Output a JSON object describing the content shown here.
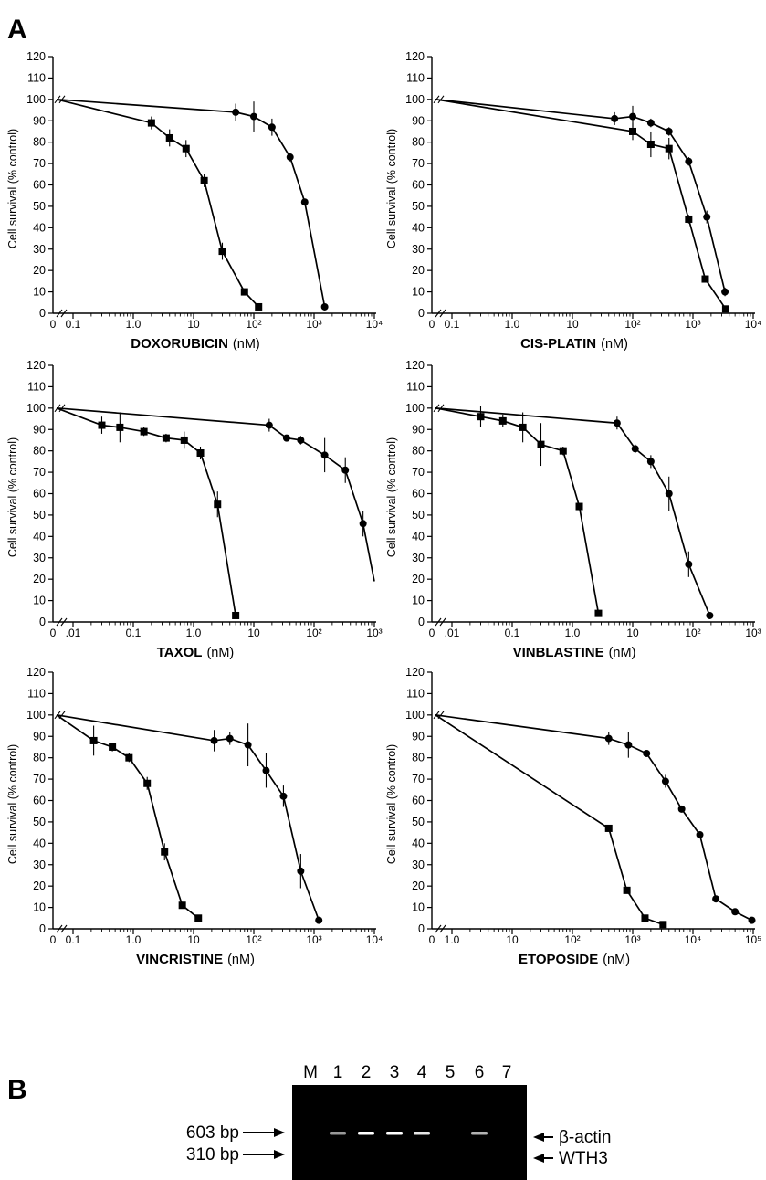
{
  "panel_a_label": "A",
  "panel_b_label": "B",
  "y_axis_label": "Cell survival (% control)",
  "chart_data": [
    {
      "type": "line",
      "drug": "DOXORUBICIN",
      "unit": "(nM)",
      "xscale": "log",
      "x_tick_labels": [
        "0",
        "0.1",
        "1.0",
        "10",
        "10²",
        "10³",
        "10⁴"
      ],
      "xlim": [
        0.1,
        10000
      ],
      "ylim": [
        0,
        120
      ],
      "y_ticks": [
        0,
        10,
        20,
        30,
        40,
        50,
        60,
        70,
        80,
        90,
        100,
        110,
        120
      ],
      "series": [
        {
          "marker": "square",
          "points": [
            [
              0.1,
              100
            ],
            [
              2,
              89
            ],
            [
              4,
              82
            ],
            [
              7.5,
              77
            ],
            [
              15,
              62
            ],
            [
              30,
              29
            ],
            [
              70,
              10
            ],
            [
              120,
              3
            ]
          ],
          "err": [
            0,
            3,
            4,
            4,
            3,
            4,
            1,
            1
          ]
        },
        {
          "marker": "circle",
          "points": [
            [
              0.1,
              100
            ],
            [
              50,
              94
            ],
            [
              100,
              92
            ],
            [
              200,
              87
            ],
            [
              400,
              73
            ],
            [
              700,
              52
            ],
            [
              1500,
              3
            ]
          ],
          "err": [
            0,
            4,
            7,
            4,
            2,
            1,
            1
          ]
        }
      ]
    },
    {
      "type": "line",
      "drug": "CIS-PLATIN",
      "unit": "(nM)",
      "xscale": "log",
      "x_tick_labels": [
        "0",
        "0.1",
        "1.0",
        "10",
        "10²",
        "10³",
        "10⁴"
      ],
      "xlim": [
        0.1,
        10000
      ],
      "ylim": [
        0,
        120
      ],
      "y_ticks": [
        0,
        10,
        20,
        30,
        40,
        50,
        60,
        70,
        80,
        90,
        100,
        110,
        120
      ],
      "series": [
        {
          "marker": "square",
          "points": [
            [
              0.1,
              100
            ],
            [
              100,
              85
            ],
            [
              200,
              79
            ],
            [
              400,
              77
            ],
            [
              850,
              44
            ],
            [
              1600,
              16
            ],
            [
              3500,
              2
            ]
          ],
          "err": [
            0,
            4,
            6,
            5,
            2,
            1,
            1
          ]
        },
        {
          "marker": "circle",
          "points": [
            [
              0.1,
              100
            ],
            [
              50,
              91
            ],
            [
              100,
              92
            ],
            [
              200,
              89
            ],
            [
              400,
              85
            ],
            [
              850,
              71
            ],
            [
              1700,
              45
            ],
            [
              3400,
              10
            ]
          ],
          "err": [
            0,
            3,
            5,
            2,
            2,
            2,
            3,
            2
          ]
        }
      ]
    },
    {
      "type": "line",
      "drug": "TAXOL",
      "unit": "(nM)",
      "xscale": "log",
      "x_tick_labels": [
        "0",
        ".01",
        "0.1",
        "1.0",
        "10",
        "10²",
        "10³"
      ],
      "xlim": [
        0.01,
        1000
      ],
      "ylim": [
        0,
        120
      ],
      "y_ticks": [
        0,
        10,
        20,
        30,
        40,
        50,
        60,
        70,
        80,
        90,
        100,
        110,
        120
      ],
      "series": [
        {
          "marker": "square",
          "points": [
            [
              0.01,
              100
            ],
            [
              0.03,
              92
            ],
            [
              0.06,
              91
            ],
            [
              0.15,
              89
            ],
            [
              0.35,
              86
            ],
            [
              0.7,
              85
            ],
            [
              1.3,
              79
            ],
            [
              2.5,
              55
            ],
            [
              5,
              3
            ]
          ],
          "err": [
            0,
            4,
            7,
            2,
            2,
            4,
            3,
            6,
            1
          ]
        },
        {
          "marker": "circle",
          "points": [
            [
              0.01,
              100
            ],
            [
              18,
              92
            ],
            [
              35,
              86
            ],
            [
              60,
              85
            ],
            [
              150,
              78
            ],
            [
              330,
              71
            ],
            [
              650,
              46
            ],
            [
              1000,
              19
            ]
          ],
          "err": [
            0,
            3,
            1,
            2,
            8,
            6,
            6,
            0
          ]
        }
      ]
    },
    {
      "type": "line",
      "drug": "VINBLASTINE",
      "unit": "(nM)",
      "xscale": "log",
      "x_tick_labels": [
        "0",
        ".01",
        "0.1",
        "1.0",
        "10",
        "10²",
        "10³"
      ],
      "xlim": [
        0.01,
        1000
      ],
      "ylim": [
        0,
        120
      ],
      "y_ticks": [
        0,
        10,
        20,
        30,
        40,
        50,
        60,
        70,
        80,
        90,
        100,
        110,
        120
      ],
      "series": [
        {
          "marker": "square",
          "points": [
            [
              0.01,
              100
            ],
            [
              0.03,
              96
            ],
            [
              0.07,
              94
            ],
            [
              0.15,
              91
            ],
            [
              0.3,
              83
            ],
            [
              0.7,
              80
            ],
            [
              1.3,
              54
            ],
            [
              2.7,
              4
            ]
          ],
          "err": [
            0,
            5,
            3,
            7,
            10,
            2,
            1,
            1
          ]
        },
        {
          "marker": "circle",
          "points": [
            [
              0.01,
              100
            ],
            [
              5.5,
              93
            ],
            [
              11,
              81
            ],
            [
              20,
              75
            ],
            [
              40,
              60
            ],
            [
              85,
              27
            ],
            [
              190,
              3
            ]
          ],
          "err": [
            0,
            3,
            2,
            3,
            8,
            6,
            1
          ]
        }
      ]
    },
    {
      "type": "line",
      "drug": "VINCRISTINE",
      "unit": "(nM)",
      "xscale": "log",
      "x_tick_labels": [
        "0",
        "0.1",
        "1.0",
        "10",
        "10²",
        "10³",
        "10⁴"
      ],
      "xlim": [
        0.1,
        10000
      ],
      "ylim": [
        0,
        120
      ],
      "y_ticks": [
        0,
        10,
        20,
        30,
        40,
        50,
        60,
        70,
        80,
        90,
        100,
        110,
        120
      ],
      "series": [
        {
          "marker": "square",
          "points": [
            [
              0.1,
              100
            ],
            [
              0.22,
              88
            ],
            [
              0.45,
              85
            ],
            [
              0.85,
              80
            ],
            [
              1.7,
              68
            ],
            [
              3.3,
              36
            ],
            [
              6.5,
              11
            ],
            [
              12,
              5
            ]
          ],
          "err": [
            0,
            7,
            2,
            2,
            3,
            4,
            1,
            1
          ]
        },
        {
          "marker": "circle",
          "points": [
            [
              0.1,
              100
            ],
            [
              22,
              88
            ],
            [
              40,
              89
            ],
            [
              80,
              86
            ],
            [
              160,
              74
            ],
            [
              310,
              62
            ],
            [
              600,
              27
            ],
            [
              1200,
              4
            ]
          ],
          "err": [
            0,
            5,
            3,
            10,
            8,
            5,
            8,
            1
          ]
        }
      ]
    },
    {
      "type": "line",
      "drug": "ETOPOSIDE",
      "unit": "(nM)",
      "xscale": "log",
      "x_tick_labels": [
        "0",
        "1.0",
        "10",
        "10²",
        "10³",
        "10⁴",
        "10⁵"
      ],
      "xlim": [
        1,
        100000
      ],
      "ylim": [
        0,
        120
      ],
      "y_ticks": [
        0,
        10,
        20,
        30,
        40,
        50,
        60,
        70,
        80,
        90,
        100,
        110,
        120
      ],
      "series": [
        {
          "marker": "square",
          "points": [
            [
              1,
              100
            ],
            [
              400,
              47
            ],
            [
              800,
              18
            ],
            [
              1600,
              5
            ],
            [
              3200,
              2
            ]
          ],
          "err": [
            0,
            1,
            1,
            1,
            1
          ]
        },
        {
          "marker": "circle",
          "points": [
            [
              1,
              100
            ],
            [
              400,
              89
            ],
            [
              850,
              86
            ],
            [
              1700,
              82
            ],
            [
              3500,
              69
            ],
            [
              6500,
              56
            ],
            [
              13000,
              44
            ],
            [
              24000,
              14
            ],
            [
              50000,
              8
            ],
            [
              95000,
              4
            ]
          ],
          "err": [
            0,
            3,
            6,
            1,
            3,
            1,
            1,
            1,
            1,
            1
          ]
        }
      ]
    }
  ],
  "gel": {
    "lanes": [
      "M",
      "1",
      "2",
      "3",
      "4",
      "5",
      "6",
      "7"
    ],
    "left_markers": [
      "603 bp",
      "310 bp"
    ],
    "right_labels": [
      "β-actin",
      "WTH3"
    ]
  }
}
